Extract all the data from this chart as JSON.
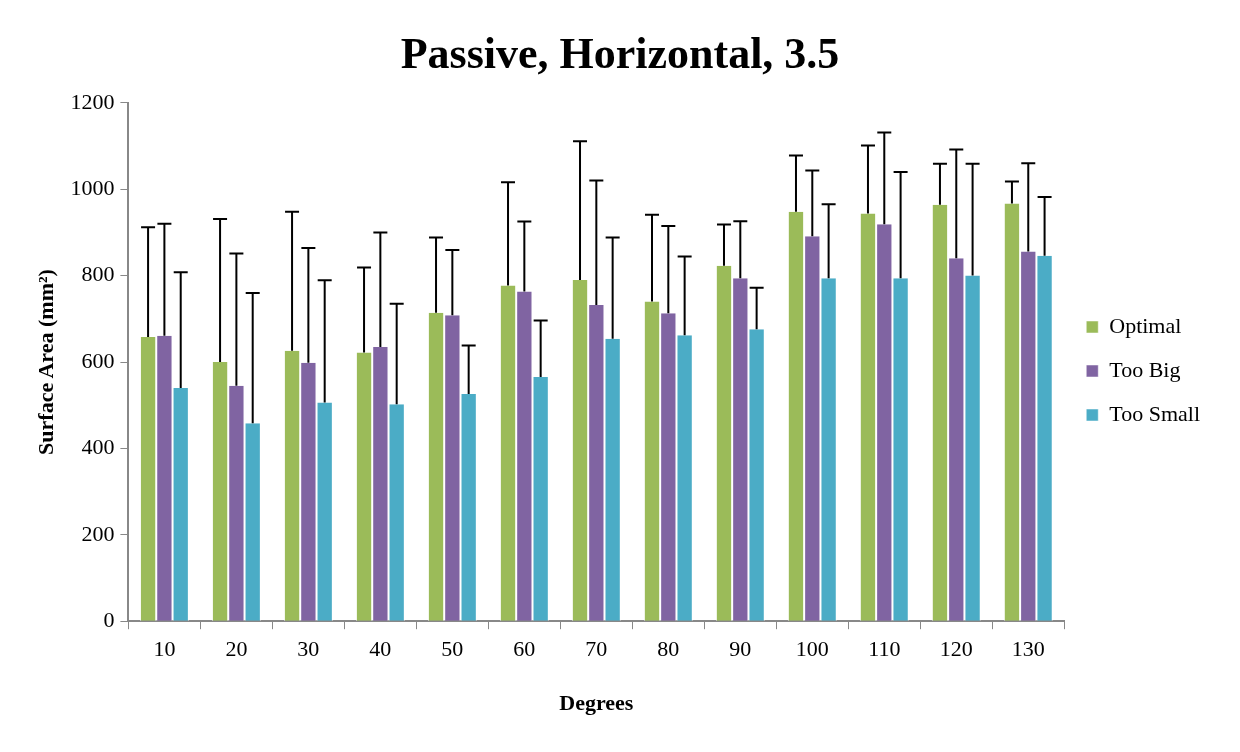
{
  "chart_data": {
    "type": "bar",
    "title": "Passive, Horizontal, 3.5",
    "xlabel": "Degrees",
    "ylabel": "Surface Area (mm²)",
    "categories": [
      "10",
      "20",
      "30",
      "40",
      "50",
      "60",
      "70",
      "80",
      "90",
      "100",
      "110",
      "120",
      "130"
    ],
    "series": [
      {
        "name": "Optimal",
        "color": "#9bbb59",
        "values": [
          658,
          600,
          626,
          622,
          714,
          777,
          790,
          740,
          823,
          948,
          944,
          964,
          967
        ],
        "errors": [
          [
            658,
            912
          ],
          [
            600,
            931
          ],
          [
            626,
            948
          ],
          [
            622,
            819
          ],
          [
            714,
            888
          ],
          [
            777,
            1016
          ],
          [
            790,
            1111
          ],
          [
            740,
            941
          ],
          [
            823,
            918
          ],
          [
            948,
            1078
          ],
          [
            944,
            1101
          ],
          [
            964,
            1059
          ],
          [
            967,
            1018
          ]
        ]
      },
      {
        "name": "Too Big",
        "color": "#8064a2",
        "values": [
          661,
          545,
          598,
          635,
          708,
          763,
          732,
          713,
          794,
          891,
          919,
          840,
          856
        ],
        "errors": [
          [
            661,
            920
          ],
          [
            545,
            851
          ],
          [
            598,
            864
          ],
          [
            635,
            900
          ],
          [
            708,
            859
          ],
          [
            763,
            925
          ],
          [
            732,
            1020
          ],
          [
            713,
            915
          ],
          [
            794,
            926
          ],
          [
            891,
            1043
          ],
          [
            919,
            1131
          ],
          [
            840,
            1092
          ],
          [
            856,
            1060
          ]
        ]
      },
      {
        "name": "Too Small",
        "color": "#4bacc6",
        "values": [
          540,
          458,
          506,
          502,
          526,
          565,
          654,
          662,
          676,
          794,
          794,
          800,
          846
        ],
        "errors": [
          [
            540,
            808
          ],
          [
            458,
            760
          ],
          [
            506,
            789
          ],
          [
            502,
            735
          ],
          [
            526,
            638
          ],
          [
            565,
            696
          ],
          [
            654,
            888
          ],
          [
            662,
            844
          ],
          [
            676,
            772
          ],
          [
            794,
            965
          ],
          [
            794,
            1040
          ],
          [
            800,
            1059
          ],
          [
            846,
            982
          ]
        ]
      }
    ],
    "ylim": [
      0,
      1200
    ],
    "yticks": [
      0,
      200,
      400,
      600,
      800,
      1000,
      1200
    ],
    "grid": false,
    "legend": "right"
  }
}
